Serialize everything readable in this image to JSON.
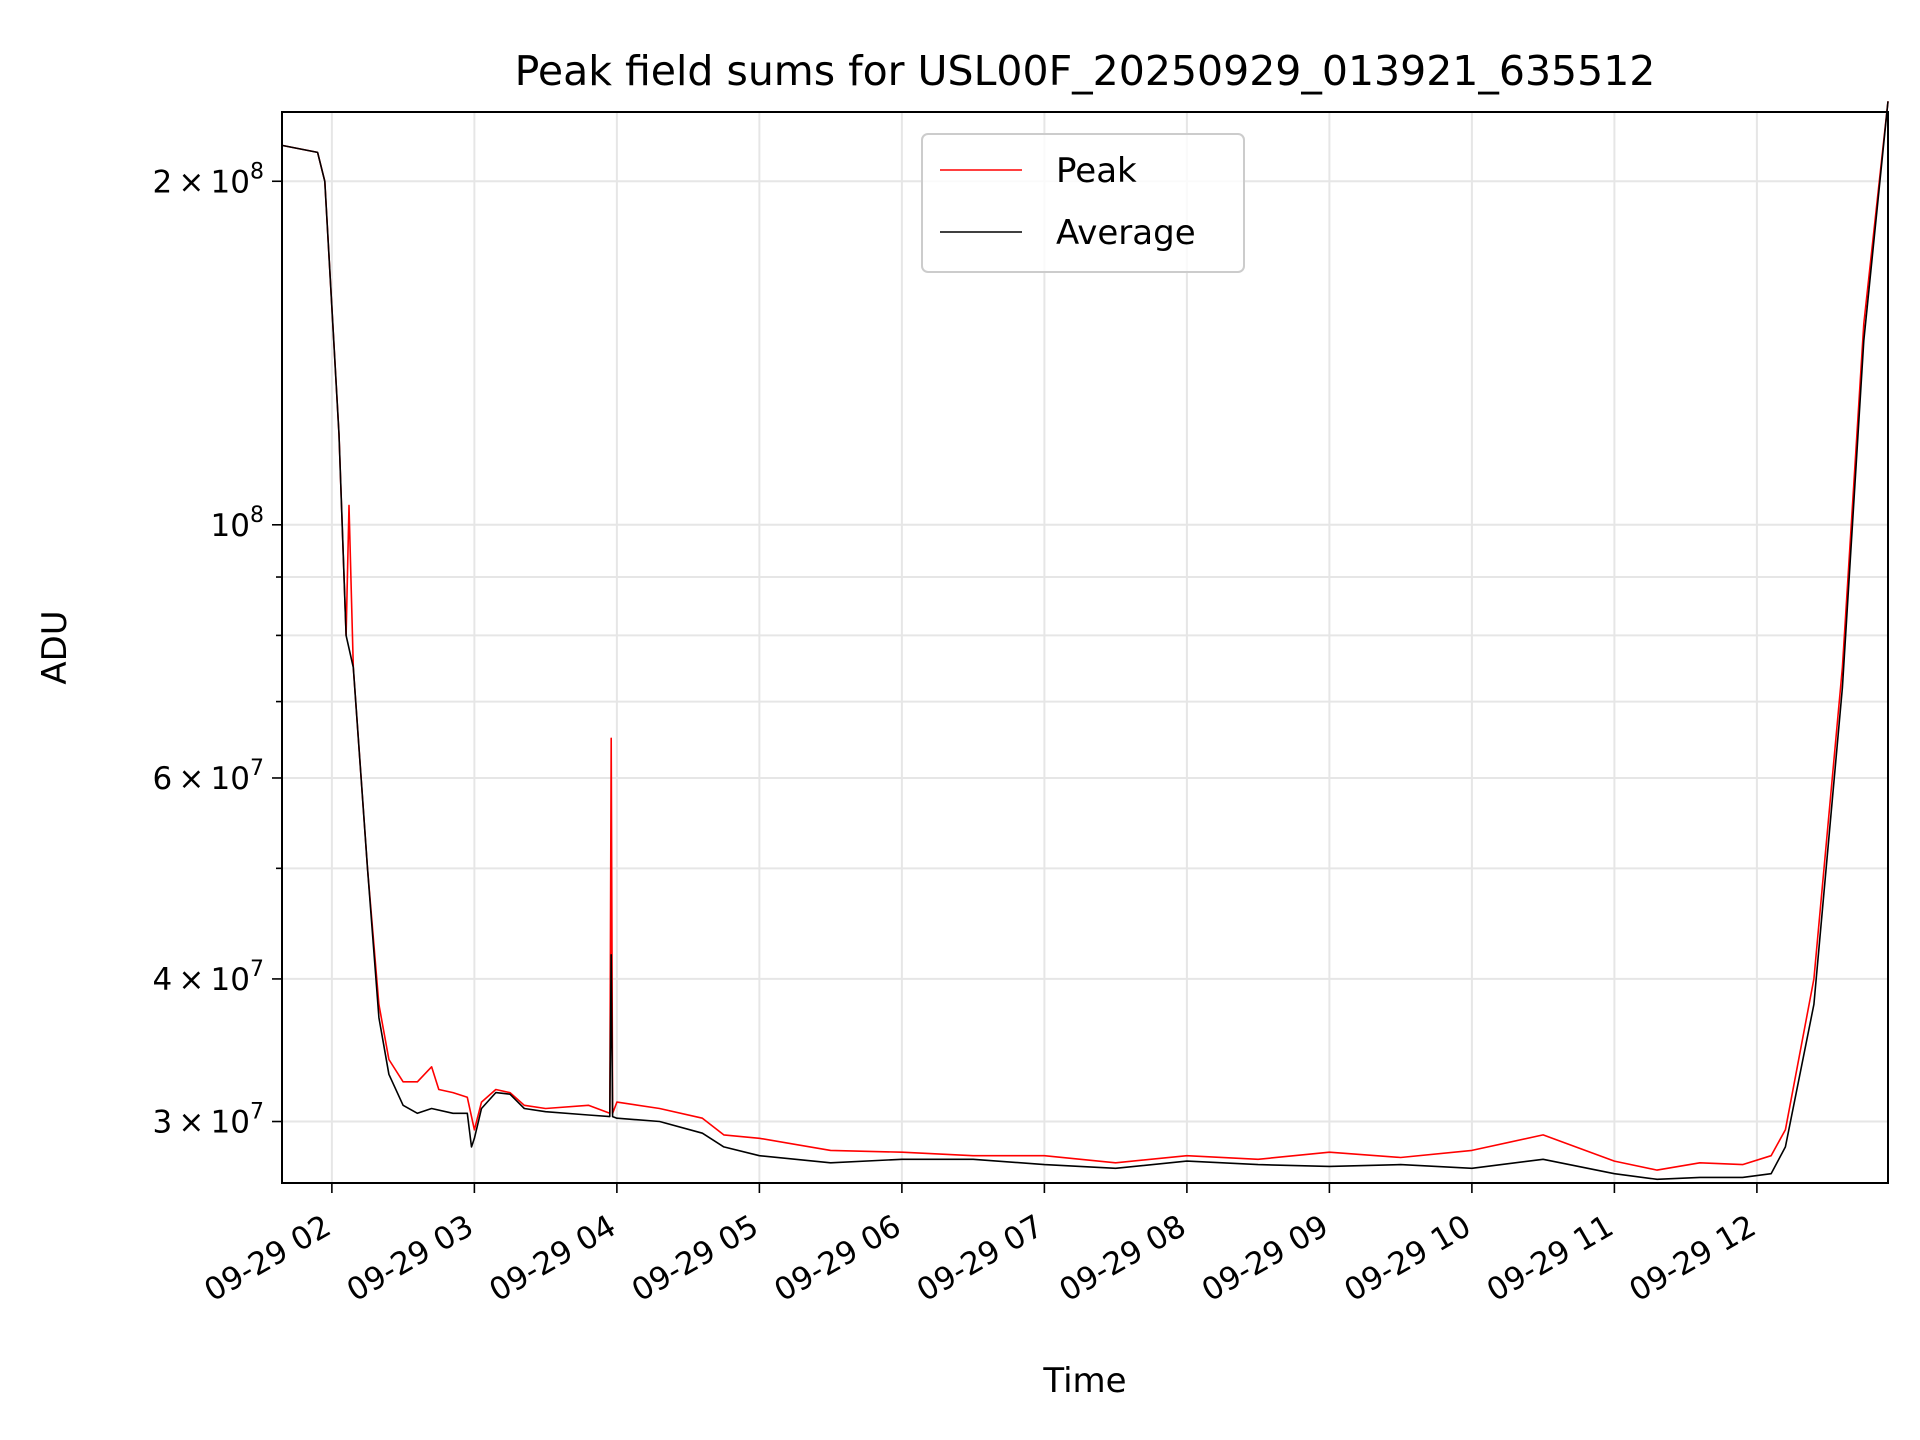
{
  "chart_data": {
    "type": "line",
    "title": "Peak field sums for USL00F_20250929_013921_635512",
    "xlabel": "Time",
    "ylabel": "ADU",
    "yscale": "log",
    "ylim": [
      26500000,
      230000000
    ],
    "xlim_hours": [
      1.65,
      12.92
    ],
    "grid": true,
    "legend_position": "upper-center",
    "x_ticks": [
      {
        "hour": 2,
        "label": "09-29 02"
      },
      {
        "hour": 3,
        "label": "09-29 03"
      },
      {
        "hour": 4,
        "label": "09-29 04"
      },
      {
        "hour": 5,
        "label": "09-29 05"
      },
      {
        "hour": 6,
        "label": "09-29 06"
      },
      {
        "hour": 7,
        "label": "09-29 07"
      },
      {
        "hour": 8,
        "label": "09-29 08"
      },
      {
        "hour": 9,
        "label": "09-29 09"
      },
      {
        "hour": 10,
        "label": "09-29 10"
      },
      {
        "hour": 11,
        "label": "09-29 11"
      },
      {
        "hour": 12,
        "label": "09-29 12"
      }
    ],
    "y_major_ticks": [
      {
        "value": 30000000,
        "mantissa": "3",
        "exp": "7"
      },
      {
        "value": 40000000,
        "mantissa": "4",
        "exp": "7"
      },
      {
        "value": 60000000,
        "mantissa": "6",
        "exp": "7"
      },
      {
        "value": 100000000,
        "mantissa": "",
        "exp": "8"
      },
      {
        "value": 200000000,
        "mantissa": "2",
        "exp": "8"
      }
    ],
    "y_minor_grid": [
      50000000,
      70000000,
      80000000,
      90000000
    ],
    "series": [
      {
        "name": "Peak",
        "color": "#ff0000",
        "x": [
          1.65,
          1.9,
          1.95,
          2.05,
          2.1,
          2.12,
          2.15,
          2.25,
          2.33,
          2.4,
          2.5,
          2.6,
          2.7,
          2.75,
          2.85,
          2.95,
          3.0,
          3.05,
          3.15,
          3.25,
          3.35,
          3.5,
          3.8,
          3.95,
          3.96,
          3.97,
          4.0,
          4.3,
          4.6,
          4.75,
          5.0,
          5.5,
          6.0,
          6.5,
          7.0,
          7.5,
          8.0,
          8.5,
          9.0,
          9.5,
          10.0,
          10.5,
          11.0,
          11.3,
          11.6,
          11.9,
          12.1,
          12.2,
          12.4,
          12.6,
          12.75,
          12.92
        ],
        "values": [
          215000000,
          212000000,
          200000000,
          120000000,
          80000000,
          104000000,
          75000000,
          50000000,
          38000000,
          34000000,
          32500000,
          32500000,
          33500000,
          32000000,
          31800000,
          31500000,
          29500000,
          31200000,
          32000000,
          31800000,
          31000000,
          30800000,
          31000000,
          30500000,
          65000000,
          30500000,
          31200000,
          30800000,
          30200000,
          29200000,
          29000000,
          28300000,
          28200000,
          28000000,
          28000000,
          27600000,
          28000000,
          27800000,
          28200000,
          27900000,
          28300000,
          29200000,
          27700000,
          27200000,
          27600000,
          27500000,
          28000000,
          29500000,
          40000000,
          75000000,
          150000000,
          235000000
        ]
      },
      {
        "name": "Average",
        "color": "#000000",
        "x": [
          1.65,
          1.9,
          1.95,
          2.05,
          2.1,
          2.15,
          2.25,
          2.33,
          2.4,
          2.5,
          2.6,
          2.7,
          2.85,
          2.95,
          2.98,
          3.0,
          3.05,
          3.15,
          3.25,
          3.35,
          3.5,
          3.8,
          3.95,
          3.96,
          3.97,
          4.0,
          4.3,
          4.6,
          4.75,
          5.0,
          5.5,
          6.0,
          6.5,
          7.0,
          7.5,
          8.0,
          8.5,
          9.0,
          9.5,
          10.0,
          10.5,
          11.0,
          11.3,
          11.6,
          11.9,
          12.1,
          12.2,
          12.4,
          12.6,
          12.75,
          12.92
        ],
        "values": [
          215000000,
          212000000,
          200000000,
          120000000,
          80000000,
          75000000,
          50000000,
          37000000,
          33000000,
          31000000,
          30500000,
          30800000,
          30500000,
          30500000,
          28500000,
          29000000,
          30800000,
          31800000,
          31700000,
          30800000,
          30600000,
          30400000,
          30300000,
          42000000,
          30300000,
          30200000,
          30000000,
          29300000,
          28500000,
          28000000,
          27600000,
          27800000,
          27800000,
          27500000,
          27300000,
          27700000,
          27500000,
          27400000,
          27500000,
          27300000,
          27800000,
          27000000,
          26700000,
          26800000,
          26800000,
          27000000,
          28500000,
          38000000,
          72000000,
          145000000,
          235000000
        ]
      }
    ]
  }
}
